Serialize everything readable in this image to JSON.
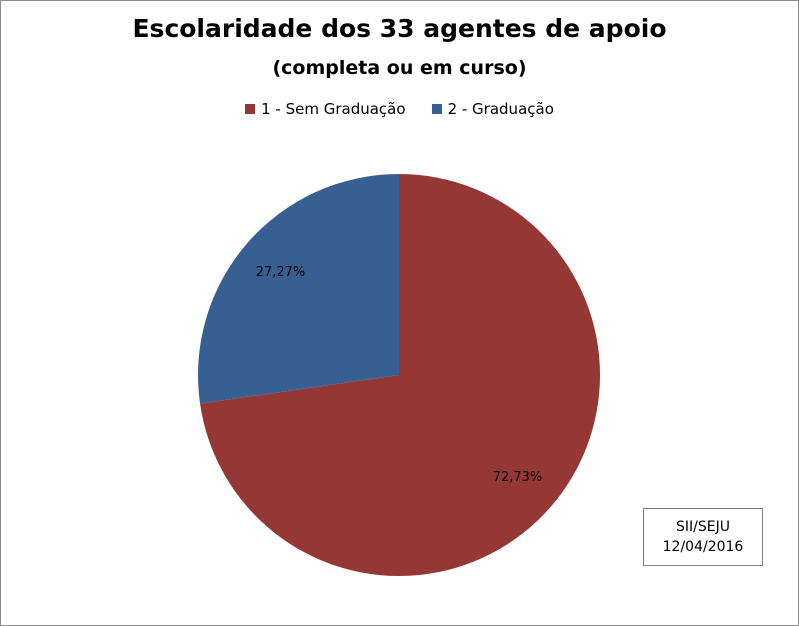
{
  "chart_data": {
    "type": "pie",
    "title": "Escolaridade dos 33 agentes de apoio",
    "subtitle": "(completa ou em curso)",
    "categories": [
      "1 - Sem Graduação",
      "2 - Graduação"
    ],
    "values": [
      72.73,
      27.27
    ],
    "labels": [
      "72,73%",
      "27,27%"
    ],
    "colors": [
      "#953735",
      "#376092"
    ],
    "legend_position": "top"
  },
  "source_note": {
    "line1": "SII/SEJU",
    "line2": "12/04/2016"
  }
}
